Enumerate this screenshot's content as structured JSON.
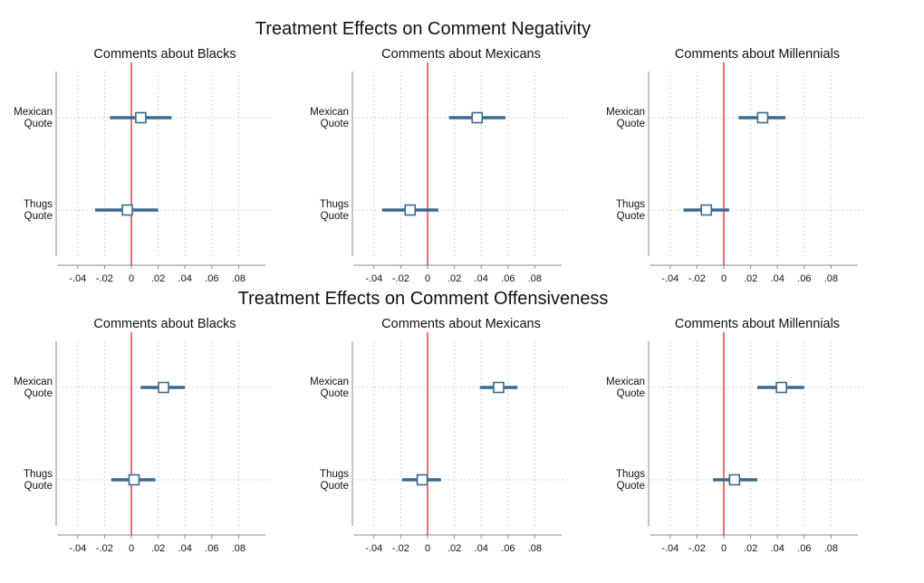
{
  "sections": [
    {
      "title": "Treatment Effects on Comment Negativity"
    },
    {
      "title": "Treatment Effects on Comment Offensiveness"
    }
  ],
  "chart_data": [
    {
      "type": "scatter",
      "subtitle": "Comments about Blacks",
      "section": "Treatment Effects on Comment Negativity",
      "categories": [
        [
          "Mexican",
          "Quote"
        ],
        [
          "Thugs",
          "Quote"
        ]
      ],
      "estimates": [
        0.007,
        -0.003
      ],
      "ci_low": [
        -0.016,
        -0.027
      ],
      "ci_high": [
        0.03,
        0.02
      ],
      "xticks": [
        -0.04,
        -0.02,
        0,
        0.02,
        0.04,
        0.06,
        0.08
      ],
      "xtick_labels": [
        "-.04",
        "-.02",
        "0",
        ".02",
        ".04",
        ".06",
        ".08"
      ],
      "xlim": [
        -0.055,
        0.1
      ],
      "reference_line": 0,
      "grid": true
    },
    {
      "type": "scatter",
      "subtitle": "Comments about Mexicans",
      "section": "Treatment Effects on Comment Negativity",
      "categories": [
        [
          "Mexican",
          "Quote"
        ],
        [
          "Thugs",
          "Quote"
        ]
      ],
      "estimates": [
        0.037,
        -0.013
      ],
      "ci_low": [
        0.016,
        -0.034
      ],
      "ci_high": [
        0.058,
        0.008
      ],
      "xticks": [
        -0.04,
        -0.02,
        0,
        0.02,
        0.04,
        0.06,
        0.08
      ],
      "xtick_labels": [
        "-.04",
        "-.02",
        "0",
        ".02",
        ".04",
        ".06",
        ".08"
      ],
      "xlim": [
        -0.055,
        0.1
      ],
      "reference_line": 0,
      "grid": true
    },
    {
      "type": "scatter",
      "subtitle": "Comments about Millennials",
      "section": "Treatment Effects on Comment Negativity",
      "categories": [
        [
          "Mexican",
          "Quote"
        ],
        [
          "Thugs",
          "Quote"
        ]
      ],
      "estimates": [
        0.029,
        -0.013
      ],
      "ci_low": [
        0.011,
        -0.03
      ],
      "ci_high": [
        0.046,
        0.004
      ],
      "xticks": [
        -0.04,
        -0.02,
        0,
        0.02,
        0.04,
        0.06,
        0.08
      ],
      "xtick_labels": [
        "-.04",
        "-.02",
        "0",
        ".02",
        ".04",
        ".06",
        ".08"
      ],
      "xlim": [
        -0.055,
        0.1
      ],
      "reference_line": 0,
      "grid": true
    },
    {
      "type": "scatter",
      "subtitle": "Comments about Blacks",
      "section": "Treatment Effects on Comment Offensiveness",
      "categories": [
        [
          "Mexican",
          "Quote"
        ],
        [
          "Thugs",
          "Quote"
        ]
      ],
      "estimates": [
        0.024,
        0.002
      ],
      "ci_low": [
        0.007,
        -0.015
      ],
      "ci_high": [
        0.04,
        0.018
      ],
      "xticks": [
        -0.04,
        -0.02,
        0,
        0.02,
        0.04,
        0.06,
        0.08
      ],
      "xtick_labels": [
        "-.04",
        "-.02",
        "0",
        ".02",
        ".04",
        ".06",
        ".08"
      ],
      "xlim": [
        -0.055,
        0.1
      ],
      "reference_line": 0,
      "grid": true
    },
    {
      "type": "scatter",
      "subtitle": "Comments about Mexicans",
      "section": "Treatment Effects on Comment Offensiveness",
      "categories": [
        [
          "Mexican",
          "Quote"
        ],
        [
          "Thugs",
          "Quote"
        ]
      ],
      "estimates": [
        0.053,
        -0.004
      ],
      "ci_low": [
        0.039,
        -0.019
      ],
      "ci_high": [
        0.067,
        0.01
      ],
      "xticks": [
        -0.04,
        -0.02,
        0,
        0.02,
        0.04,
        0.06,
        0.08
      ],
      "xtick_labels": [
        "-.04",
        "-.02",
        "0",
        ".02",
        ".04",
        ".06",
        ".08"
      ],
      "xlim": [
        -0.055,
        0.1
      ],
      "reference_line": 0,
      "grid": true
    },
    {
      "type": "scatter",
      "subtitle": "Comments about Millennials",
      "section": "Treatment Effects on Comment Offensiveness",
      "categories": [
        [
          "Mexican",
          "Quote"
        ],
        [
          "Thugs",
          "Quote"
        ]
      ],
      "estimates": [
        0.043,
        0.008
      ],
      "ci_low": [
        0.025,
        -0.008
      ],
      "ci_high": [
        0.06,
        0.025
      ],
      "xticks": [
        -0.04,
        -0.02,
        0,
        0.02,
        0.04,
        0.06,
        0.08
      ],
      "xtick_labels": [
        "-.04",
        "-.02",
        "0",
        ".02",
        ".04",
        ".06",
        ".08"
      ],
      "xlim": [
        -0.055,
        0.1
      ],
      "reference_line": 0,
      "grid": true
    }
  ],
  "colors": {
    "estimate": "#3b6a8f",
    "reference_line": "#d62728",
    "grid": "#c8c8c8",
    "axis": "#888888"
  }
}
